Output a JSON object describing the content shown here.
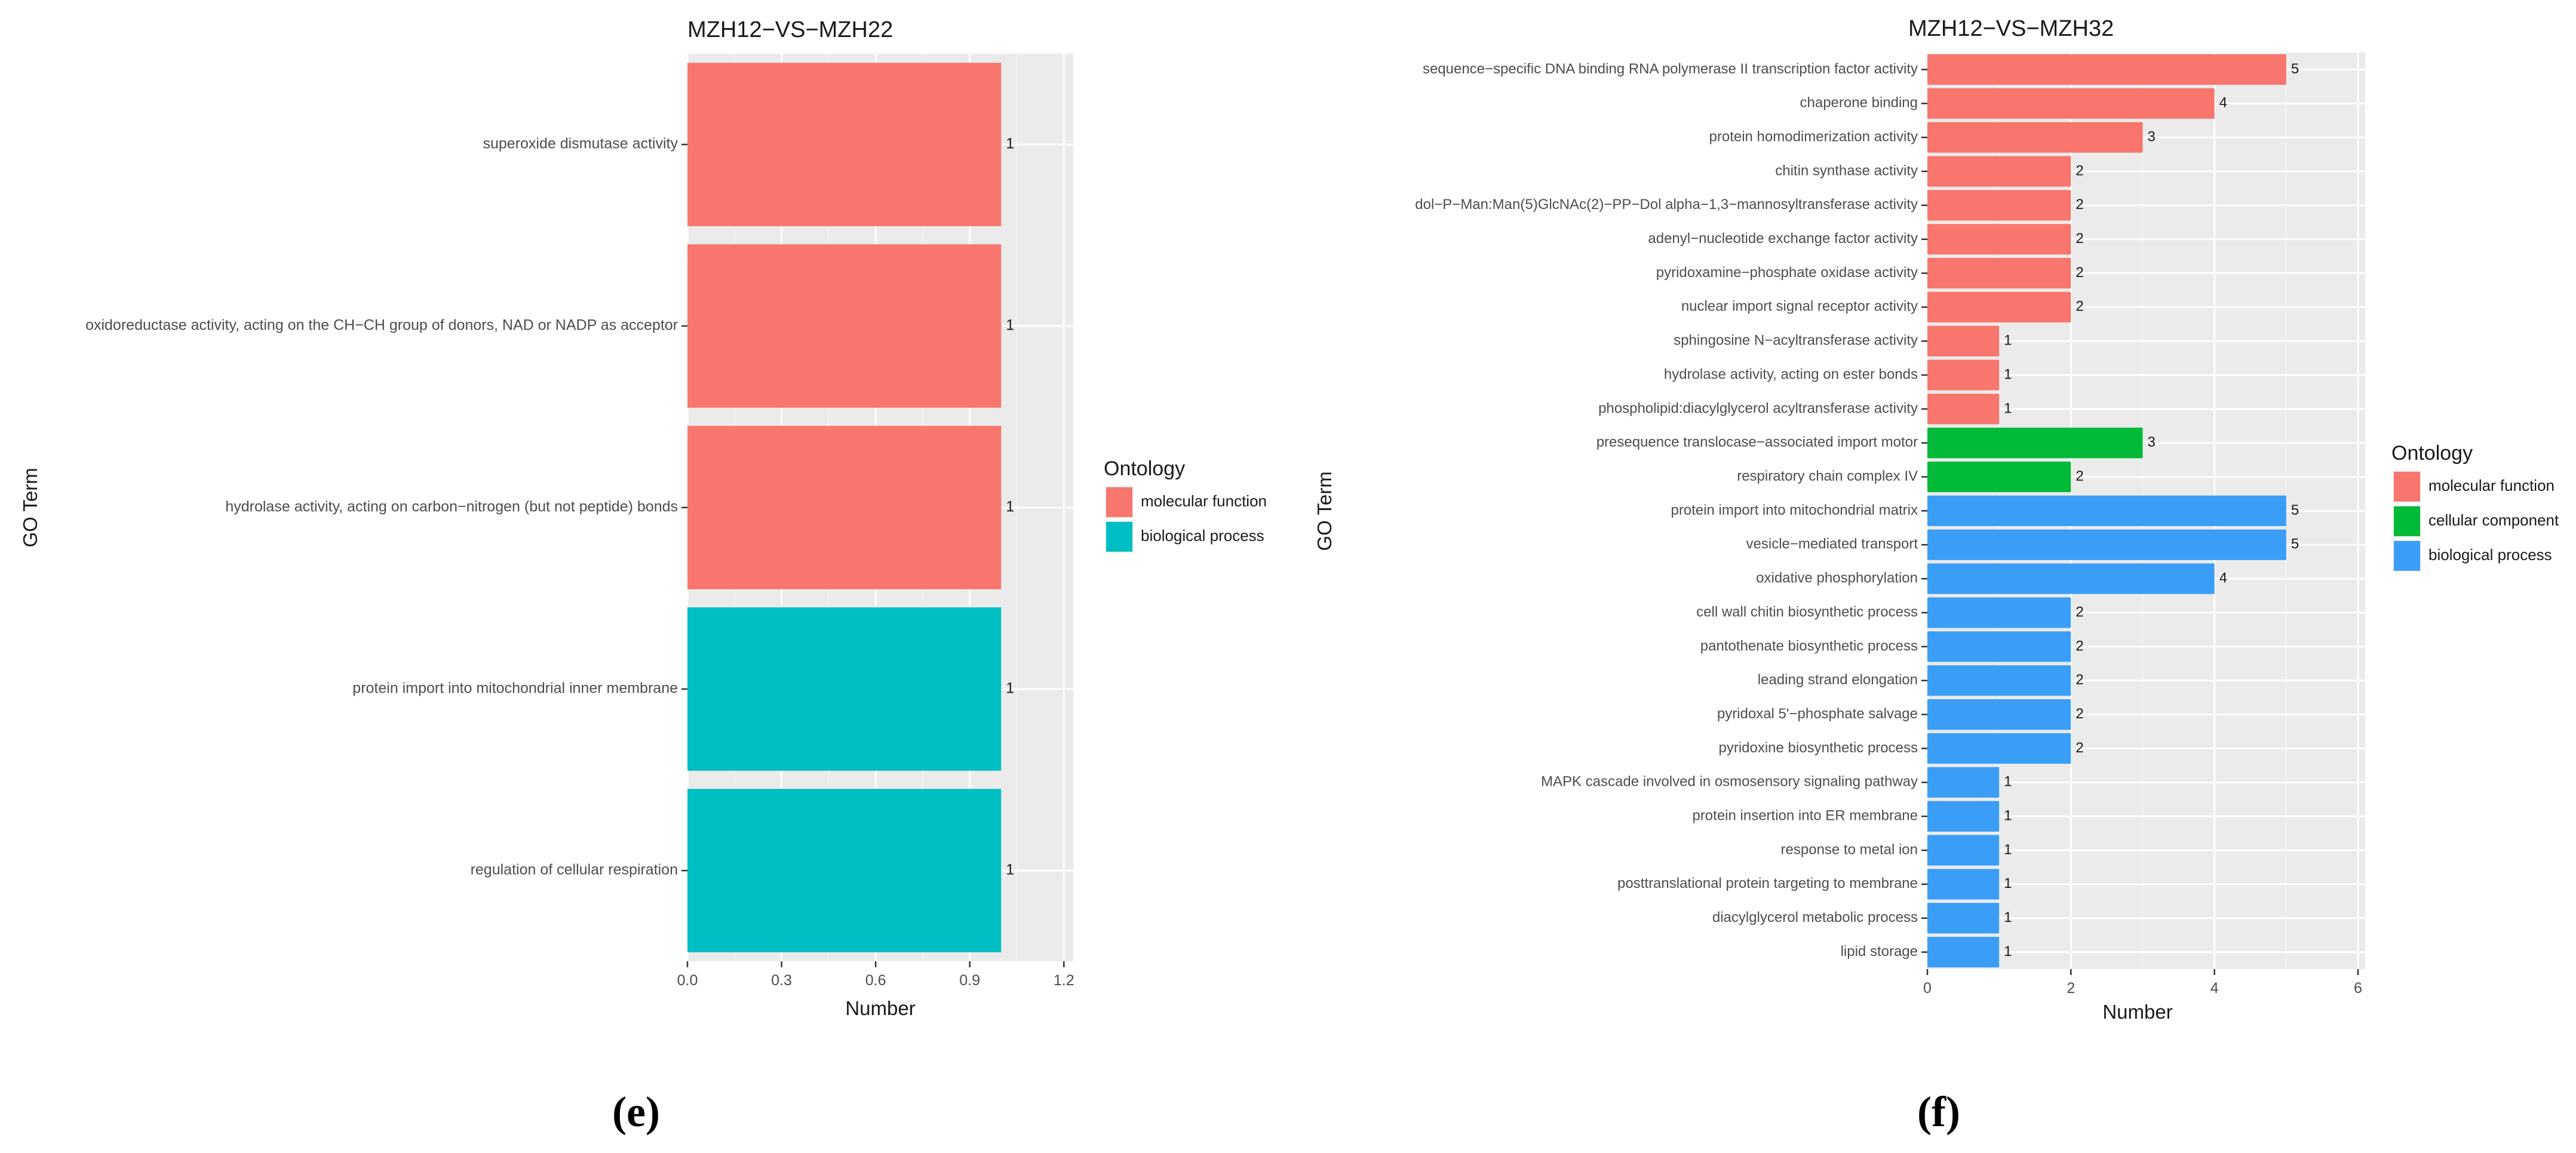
{
  "chart_data": [
    {
      "panel_label": "(e)",
      "type": "bar",
      "orientation": "horizontal",
      "title": "MZH12−VS−MZH22",
      "xlabel": "Number",
      "ylabel": "GO Term",
      "xlim": [
        0,
        1.23
      ],
      "xticks": [
        "0.0",
        "0.3",
        "0.6",
        "0.9",
        "1.2"
      ],
      "xtick_values": [
        0,
        0.3,
        0.6,
        0.9,
        1.2
      ],
      "grid": true,
      "legend_title": "Ontology",
      "legend_position": "right",
      "legend": [
        {
          "name": "molecular function",
          "color": "#F8766D"
        },
        {
          "name": "biological process",
          "color": "#00BFC4"
        }
      ],
      "bars": [
        {
          "category": "superoxide dismutase activity",
          "value": 1,
          "label": "1",
          "ontology": "molecular function"
        },
        {
          "category": "oxidoreductase activity, acting on the CH−CH group of donors, NAD or NADP as acceptor",
          "value": 1,
          "label": "1",
          "ontology": "molecular function"
        },
        {
          "category": "hydrolase activity, acting on carbon−nitrogen (but not peptide) bonds",
          "value": 1,
          "label": "1",
          "ontology": "molecular function"
        },
        {
          "category": "protein import into mitochondrial inner membrane",
          "value": 1,
          "label": "1",
          "ontology": "biological process"
        },
        {
          "category": "regulation of cellular respiration",
          "value": 1,
          "label": "1",
          "ontology": "biological process"
        }
      ]
    },
    {
      "panel_label": "(f)",
      "type": "bar",
      "orientation": "horizontal",
      "title": "MZH12−VS−MZH32",
      "xlabel": "Number",
      "ylabel": "GO Term",
      "xlim": [
        0,
        6.1
      ],
      "xticks": [
        "0",
        "2",
        "4",
        "6"
      ],
      "xtick_values": [
        0,
        2,
        4,
        6
      ],
      "grid": true,
      "legend_title": "Ontology",
      "legend_position": "right",
      "legend": [
        {
          "name": "molecular function",
          "color": "#F8766D"
        },
        {
          "name": "cellular component",
          "color": "#00BA38"
        },
        {
          "name": "biological process",
          "color": "#3A9EF7"
        }
      ],
      "bars": [
        {
          "category": "sequence−specific DNA binding RNA polymerase II transcription factor activity",
          "value": 5,
          "label": "5",
          "ontology": "molecular function"
        },
        {
          "category": "chaperone binding",
          "value": 4,
          "label": "4",
          "ontology": "molecular function"
        },
        {
          "category": "protein homodimerization activity",
          "value": 3,
          "label": "3",
          "ontology": "molecular function"
        },
        {
          "category": "chitin synthase activity",
          "value": 2,
          "label": "2",
          "ontology": "molecular function"
        },
        {
          "category": "dol−P−Man:Man(5)GlcNAc(2)−PP−Dol alpha−1,3−mannosyltransferase activity",
          "value": 2,
          "label": "2",
          "ontology": "molecular function"
        },
        {
          "category": "adenyl−nucleotide exchange factor activity",
          "value": 2,
          "label": "2",
          "ontology": "molecular function"
        },
        {
          "category": "pyridoxamine−phosphate oxidase activity",
          "value": 2,
          "label": "2",
          "ontology": "molecular function"
        },
        {
          "category": "nuclear import signal receptor activity",
          "value": 2,
          "label": "2",
          "ontology": "molecular function"
        },
        {
          "category": "sphingosine N−acyltransferase activity",
          "value": 1,
          "label": "1",
          "ontology": "molecular function"
        },
        {
          "category": "hydrolase activity, acting on ester bonds",
          "value": 1,
          "label": "1",
          "ontology": "molecular function"
        },
        {
          "category": "phospholipid:diacylglycerol acyltransferase activity",
          "value": 1,
          "label": "1",
          "ontology": "molecular function"
        },
        {
          "category": "presequence translocase−associated import motor",
          "value": 3,
          "label": "3",
          "ontology": "cellular component"
        },
        {
          "category": "respiratory chain complex IV",
          "value": 2,
          "label": "2",
          "ontology": "cellular component"
        },
        {
          "category": "protein import into mitochondrial matrix",
          "value": 5,
          "label": "5",
          "ontology": "biological process"
        },
        {
          "category": "vesicle−mediated transport",
          "value": 5,
          "label": "5",
          "ontology": "biological process"
        },
        {
          "category": "oxidative phosphorylation",
          "value": 4,
          "label": "4",
          "ontology": "biological process"
        },
        {
          "category": "cell wall chitin biosynthetic process",
          "value": 2,
          "label": "2",
          "ontology": "biological process"
        },
        {
          "category": "pantothenate biosynthetic process",
          "value": 2,
          "label": "2",
          "ontology": "biological process"
        },
        {
          "category": "leading strand elongation",
          "value": 2,
          "label": "2",
          "ontology": "biological process"
        },
        {
          "category": "pyridoxal 5'−phosphate salvage",
          "value": 2,
          "label": "2",
          "ontology": "biological process"
        },
        {
          "category": "pyridoxine biosynthetic process",
          "value": 2,
          "label": "2",
          "ontology": "biological process"
        },
        {
          "category": "MAPK cascade involved in osmosensory signaling pathway",
          "value": 1,
          "label": "1",
          "ontology": "biological process"
        },
        {
          "category": "protein insertion into ER membrane",
          "value": 1,
          "label": "1",
          "ontology": "biological process"
        },
        {
          "category": "response to metal ion",
          "value": 1,
          "label": "1",
          "ontology": "biological process"
        },
        {
          "category": "posttranslational protein targeting to membrane",
          "value": 1,
          "label": "1",
          "ontology": "biological process"
        },
        {
          "category": "diacylglycerol metabolic process",
          "value": 1,
          "label": "1",
          "ontology": "biological process"
        },
        {
          "category": "lipid storage",
          "value": 1,
          "label": "1",
          "ontology": "biological process"
        }
      ]
    }
  ]
}
